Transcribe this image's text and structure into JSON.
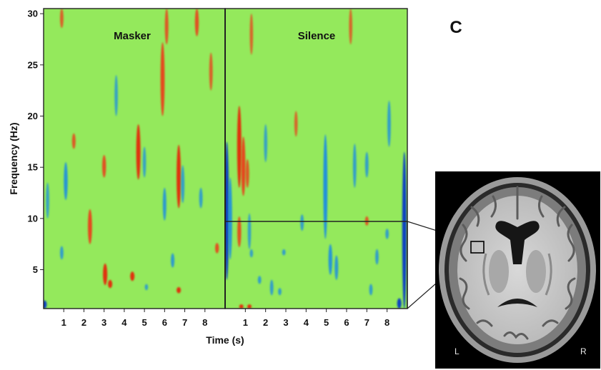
{
  "chart_data": [
    {
      "type": "heatmap",
      "title": "Masker",
      "xlabel": "Time (s)",
      "ylabel": "Frequency (Hz)",
      "xticks": [
        "1",
        "2",
        "3",
        "4",
        "5",
        "6",
        "7",
        "8"
      ],
      "yticks": [
        "5",
        "10",
        "15",
        "20",
        "25",
        "30"
      ],
      "xlim": [
        0,
        9
      ],
      "ylim": [
        1.2,
        30.5
      ],
      "grid": false,
      "colors": {
        "background": "#94e95c",
        "positive": "#e8421c",
        "strong_positive": "#e03010",
        "negative": "#1e8ee0",
        "strong_negative": "#0a42c0"
      },
      "events": [
        {
          "t": 3.05,
          "f0": 3.5,
          "f1": 5.6,
          "v": 1
        },
        {
          "t": 3.3,
          "f0": 3.2,
          "f1": 4.0,
          "v": 1
        },
        {
          "t": 4.4,
          "f0": 3.9,
          "f1": 4.8,
          "v": 1
        },
        {
          "t": 6.7,
          "f0": 2.7,
          "f1": 3.3,
          "v": 1
        },
        {
          "t": 2.3,
          "f0": 7.5,
          "f1": 10.9,
          "v": 0.9
        },
        {
          "t": 3.0,
          "f0": 14.0,
          "f1": 16.2,
          "v": 0.8
        },
        {
          "t": 4.7,
          "f0": 13.8,
          "f1": 19.2,
          "v": 1
        },
        {
          "t": 5.9,
          "f0": 20.0,
          "f1": 27.2,
          "v": 0.9
        },
        {
          "t": 6.7,
          "f0": 11.0,
          "f1": 17.2,
          "v": 1
        },
        {
          "t": 6.1,
          "f0": 27.0,
          "f1": 30.5,
          "v": 0.7
        },
        {
          "t": 7.6,
          "f0": 27.8,
          "f1": 30.5,
          "v": 0.8
        },
        {
          "t": 1.5,
          "f0": 16.8,
          "f1": 18.3,
          "v": 0.7
        },
        {
          "t": 8.3,
          "f0": 22.5,
          "f1": 26.2,
          "v": 0.6
        },
        {
          "t": 8.6,
          "f0": 6.6,
          "f1": 7.6,
          "v": 0.8
        },
        {
          "t": 0.9,
          "f0": 28.6,
          "f1": 30.5,
          "v": 0.6
        },
        {
          "t": 1.1,
          "f0": 11.8,
          "f1": 15.5,
          "v": -0.8
        },
        {
          "t": 0.9,
          "f0": 6.0,
          "f1": 7.3,
          "v": -0.6
        },
        {
          "t": 0.2,
          "f0": 10.0,
          "f1": 13.5,
          "v": -0.5
        },
        {
          "t": 3.6,
          "f0": 20.0,
          "f1": 24.0,
          "v": -0.5
        },
        {
          "t": 5.0,
          "f0": 14.0,
          "f1": 17.0,
          "v": -0.5
        },
        {
          "t": 6.0,
          "f0": 9.8,
          "f1": 13.0,
          "v": -0.7
        },
        {
          "t": 6.9,
          "f0": 11.5,
          "f1": 15.2,
          "v": -0.6
        },
        {
          "t": 6.4,
          "f0": 5.2,
          "f1": 6.6,
          "v": -0.7
        },
        {
          "t": 7.8,
          "f0": 11.0,
          "f1": 13.0,
          "v": -0.6
        },
        {
          "t": 5.1,
          "f0": 3.0,
          "f1": 3.6,
          "v": -0.5
        },
        {
          "t": 0.05,
          "f0": 1.2,
          "f1": 2.0,
          "v": -1
        }
      ]
    },
    {
      "type": "heatmap",
      "title": "Silence",
      "xlabel": "Time (s)",
      "ylabel": "Frequency (Hz)",
      "xticks": [
        "1",
        "2",
        "3",
        "4",
        "5",
        "6",
        "7",
        "8"
      ],
      "xlim": [
        0,
        9
      ],
      "ylim": [
        1.2,
        30.5
      ],
      "grid": false,
      "events": [
        {
          "t": 0.7,
          "f0": 13.0,
          "f1": 21.0,
          "v": 1
        },
        {
          "t": 0.9,
          "f0": 12.2,
          "f1": 18.0,
          "v": 0.9
        },
        {
          "t": 1.1,
          "f0": 13.0,
          "f1": 15.8,
          "v": 0.7
        },
        {
          "t": 0.7,
          "f0": 7.2,
          "f1": 10.2,
          "v": 0.8
        },
        {
          "t": 0.8,
          "f0": 1.2,
          "f1": 1.6,
          "v": 1
        },
        {
          "t": 1.2,
          "f0": 1.2,
          "f1": 1.6,
          "v": 1
        },
        {
          "t": 1.3,
          "f0": 26.0,
          "f1": 30.0,
          "v": 0.5
        },
        {
          "t": 7.0,
          "f0": 9.3,
          "f1": 10.2,
          "v": 0.7
        },
        {
          "t": 6.2,
          "f0": 27.0,
          "f1": 30.5,
          "v": 0.5
        },
        {
          "t": 3.5,
          "f0": 18.0,
          "f1": 20.5,
          "v": 0.5
        },
        {
          "t": 0.08,
          "f0": 4.0,
          "f1": 17.5,
          "v": -1
        },
        {
          "t": 0.25,
          "f0": 6.0,
          "f1": 14.0,
          "v": -0.8
        },
        {
          "t": 1.2,
          "f0": 7.0,
          "f1": 10.5,
          "v": -0.5
        },
        {
          "t": 2.0,
          "f0": 15.5,
          "f1": 19.2,
          "v": -0.5
        },
        {
          "t": 3.8,
          "f0": 8.8,
          "f1": 10.4,
          "v": -0.6
        },
        {
          "t": 4.95,
          "f0": 8.0,
          "f1": 18.2,
          "v": -0.9
        },
        {
          "t": 5.2,
          "f0": 4.5,
          "f1": 7.5,
          "v": -0.8
        },
        {
          "t": 5.5,
          "f0": 4.0,
          "f1": 6.4,
          "v": -0.7
        },
        {
          "t": 6.4,
          "f0": 13.0,
          "f1": 17.3,
          "v": -0.6
        },
        {
          "t": 7.0,
          "f0": 14.0,
          "f1": 16.5,
          "v": -0.6
        },
        {
          "t": 7.5,
          "f0": 5.5,
          "f1": 7.0,
          "v": -0.6
        },
        {
          "t": 8.1,
          "f0": 17.0,
          "f1": 21.5,
          "v": -0.6
        },
        {
          "t": 8.0,
          "f0": 8.0,
          "f1": 9.0,
          "v": -0.6
        },
        {
          "t": 8.85,
          "f0": 1.2,
          "f1": 16.5,
          "v": -1
        },
        {
          "t": 8.6,
          "f0": 1.2,
          "f1": 2.2,
          "v": -1
        },
        {
          "t": 1.7,
          "f0": 3.6,
          "f1": 4.4,
          "v": -0.6
        },
        {
          "t": 2.3,
          "f0": 2.5,
          "f1": 4.0,
          "v": -0.6
        },
        {
          "t": 2.7,
          "f0": 2.5,
          "f1": 3.2,
          "v": -0.6
        },
        {
          "t": 7.2,
          "f0": 2.5,
          "f1": 3.6,
          "v": -0.6
        },
        {
          "t": 2.9,
          "f0": 6.4,
          "f1": 7.0,
          "v": -0.6
        },
        {
          "t": 1.3,
          "f0": 6.2,
          "f1": 7.0,
          "v": -0.5
        }
      ]
    }
  ],
  "panel_letter": "C",
  "brain": {
    "left_label": "L",
    "right_label": "R"
  }
}
